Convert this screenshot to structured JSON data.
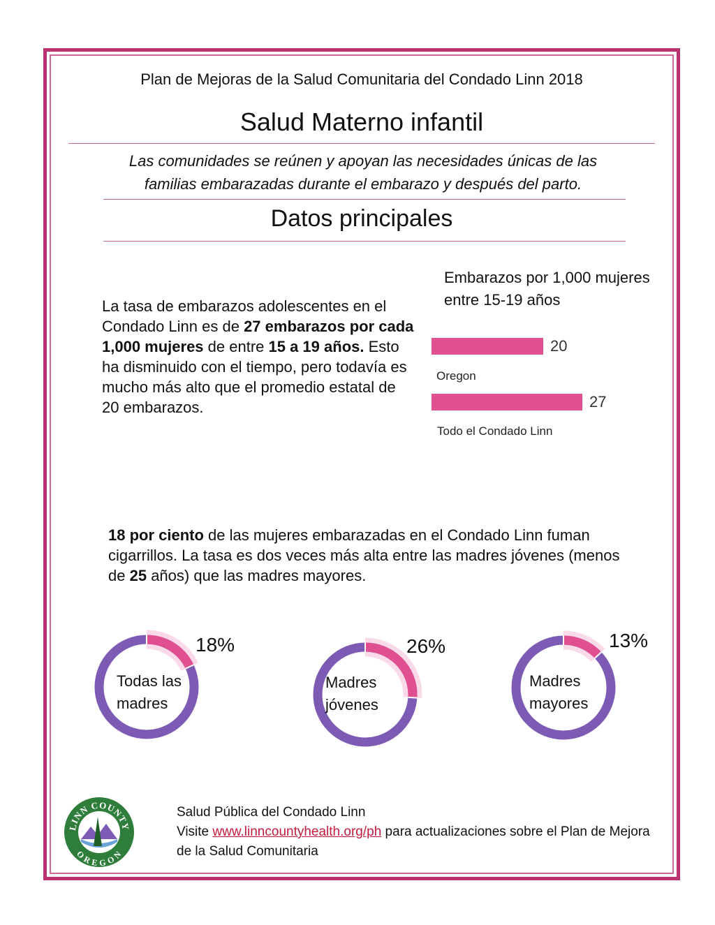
{
  "header": {
    "subtitle": "Plan de Mejoras de la Salud Comunitaria del Condado Linn 2018",
    "title": "Salud Materno infantil",
    "tagline_line1": "Las comunidades se reúnen y apoyan las necesidades únicas de las",
    "tagline_line2": "familias embarazadas durante el embarazo y después del parto."
  },
  "section": {
    "title": "Datos principales"
  },
  "teen_pregnancy": {
    "p_a": "La tasa de embarazos adolescentes en el Condado Linn es de ",
    "p_b": "27 embarazos por cada 1,000 mujeres",
    "p_c": " de entre ",
    "p_d": "15 a 19 años.",
    "p_e": " Esto ha disminuido con el tiempo, pero todavía es mucho más alto que el promedio estatal de 20 embarazos."
  },
  "chart_data": {
    "type": "bar",
    "title": "Embarazos por 1,000 mujeres entre 15-19 años",
    "categories": [
      "Oregon",
      "Todo el Condado Linn"
    ],
    "values": [
      20,
      27
    ],
    "bar_color": "#e04f8f"
  },
  "smoking": {
    "p_a": "18 por ciento",
    "p_b": " de las mujeres embarazadas en el Condado Linn fuman cigarrillos. La tasa es dos veces más alta entre las madres jóvenes (menos de ",
    "p_c": "25",
    "p_d": " años) que las madres mayores."
  },
  "donuts": [
    {
      "pct_label": "18%",
      "value": 18,
      "label_line1": "Todas las",
      "label_line2": "madres"
    },
    {
      "pct_label": "26%",
      "value": 26,
      "label_line1": "Madres",
      "label_line2": "jóvenes"
    },
    {
      "pct_label": "13%",
      "value": 13,
      "label_line1": "Madres",
      "label_line2": "mayores"
    }
  ],
  "colors": {
    "accent": "#b8326f",
    "pink": "#e04f8f",
    "purple": "#7d5bb5",
    "logo_green": "#2f7d3a"
  },
  "logo": {
    "top_text": "LINN COUNTY",
    "bottom_text": "OREGON"
  },
  "footer": {
    "org": "Salud Pública del Condado Linn",
    "visit": "Visite ",
    "link": "www.linncountyhealth.org/ph",
    "rest": " para actualizaciones sobre el Plan de Mejora de la Salud Comunitaria"
  }
}
